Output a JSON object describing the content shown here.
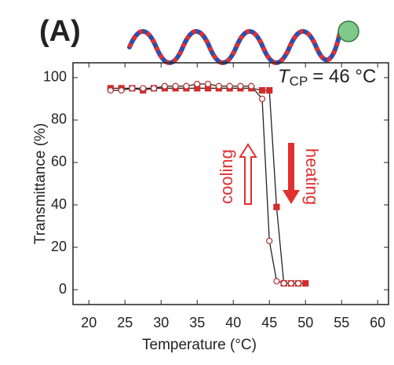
{
  "chart_data": {
    "type": "scatter",
    "panel_label": "(A)",
    "annotation": {
      "symbol": "T",
      "subscript": "CP",
      "text": "= 46 °C"
    },
    "xlabel": "Temperature (°C)",
    "ylabel": "Transmittance (%)",
    "xlim": [
      17.8,
      61.5
    ],
    "ylim": [
      -7,
      107
    ],
    "xticks": [
      20,
      25,
      30,
      35,
      40,
      45,
      50,
      55,
      60
    ],
    "yticks": [
      0,
      20,
      40,
      60,
      80,
      100
    ],
    "line_color": "#222222",
    "series": [
      {
        "name": "heating",
        "color": "#d42a2a",
        "marker": "square",
        "filled": true,
        "x": [
          23,
          24.5,
          26,
          27.5,
          29,
          30.5,
          32,
          33.5,
          35,
          36.5,
          38,
          39.5,
          41,
          42.5,
          44,
          45,
          46,
          47,
          48,
          49,
          50
        ],
        "values": [
          95,
          95,
          95,
          94,
          95,
          95,
          95,
          95,
          95,
          95,
          95,
          95,
          95,
          95,
          94,
          94,
          39,
          3,
          3,
          3,
          3
        ]
      },
      {
        "name": "cooling",
        "color": "#b03030",
        "marker": "circle",
        "filled": false,
        "x": [
          23,
          24.5,
          26,
          27.5,
          29,
          30.5,
          32,
          33.5,
          35,
          36.5,
          38,
          39.5,
          41,
          42.5,
          44,
          45,
          46,
          47,
          48,
          49
        ],
        "values": [
          94,
          94,
          95,
          95,
          95,
          96,
          96,
          96,
          97,
          97,
          96,
          96,
          96,
          96,
          90,
          23,
          4,
          3,
          3,
          3
        ]
      }
    ]
  }
}
